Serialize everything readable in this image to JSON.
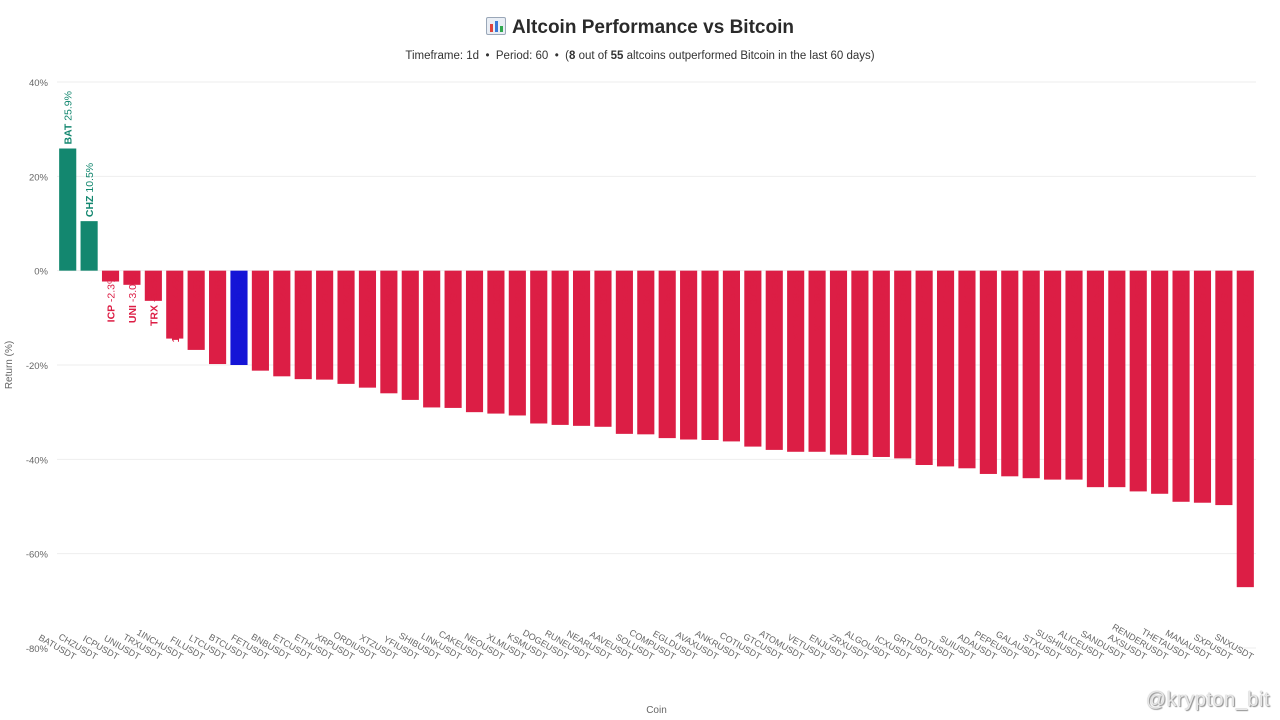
{
  "header": {
    "title": "Altcoin Performance vs Bitcoin",
    "timeframe_text": "Timeframe: 1d",
    "period_text": "Period: 60",
    "outperf_count": "8",
    "outperf_mid": "out of",
    "total_count": "55",
    "outperf_tail": "altcoins outperformed Bitcoin in the last 60 days"
  },
  "watermark": "@krypton_bit",
  "colors": {
    "outperform": "#13876f",
    "underperform": "#dc1e45",
    "bitcoin": "#1515d6",
    "grid": "#eeeeee",
    "axis_text": "#666666"
  },
  "chart_data": {
    "type": "bar",
    "xlabel": "Coin",
    "ylabel": "Return (%)",
    "ylim": [
      -80,
      40
    ],
    "yticks": [
      40,
      20,
      0,
      -20,
      -40,
      -60,
      -80
    ],
    "ytick_labels": [
      "40%",
      "20%",
      "0%",
      "-20%",
      "-40%",
      "-60%",
      "-80%"
    ],
    "grid": true,
    "categories": [
      "BATUSDT",
      "CHZUSDT",
      "ICPUSDT",
      "UNIUSDT",
      "TRXUSDT",
      "1INCHUSDT",
      "FILUSDT",
      "LTCUSDT",
      "BTCUSDT",
      "FETUSDT",
      "BNBUSDT",
      "ETCUSDT",
      "ETHUSDT",
      "XRPUSDT",
      "ORDIUSDT",
      "XTZUSDT",
      "YFIUSDT",
      "SHIBUSDT",
      "LINKUSDT",
      "CAKEUSDT",
      "NEOUSDT",
      "XLMUSDT",
      "KSMUSDT",
      "DOGEUSDT",
      "RUNEUSDT",
      "NEARUSDT",
      "AAVEUSDT",
      "SOLUSDT",
      "COMPUSDT",
      "EGLDUSDT",
      "AVAXUSDT",
      "ANKRUSDT",
      "COTIUSDT",
      "GTCUSDT",
      "ATOMUSDT",
      "VETUSDT",
      "ENJUSDT",
      "ZRXUSDT",
      "ALGOUSDT",
      "ICXUSDT",
      "GRTUSDT",
      "DOTUSDT",
      "SUIUSDT",
      "ADAUSDT",
      "PEPEUSDT",
      "GALAUSDT",
      "STXUSDT",
      "SUSHIUSDT",
      "ALICEUSDT",
      "SANDUSDT",
      "AXSUSDT",
      "RENDERUSDT",
      "THETAUSDT",
      "MANAUSDT",
      "SXPUSDT",
      "SNXUSDT"
    ],
    "bar_labels": [
      "BAT",
      "CHZ",
      "ICP",
      "UNI",
      "TRX",
      "1INCH",
      "FIL",
      "LTC",
      "BTC",
      "FET",
      "BNB",
      "ETC",
      "ETH",
      "XRP",
      "ORDI",
      "XTZ",
      "YFI",
      "SHIB",
      "LINK",
      "CAKE",
      "NEO",
      "XLM",
      "KSM",
      "DOGE",
      "RUNE",
      "NEAR",
      "AAVE",
      "SOL",
      "COMP",
      "EGLD",
      "AVAX",
      "ANKR",
      "COTI",
      "GTC",
      "ATOM",
      "VET",
      "ENJ",
      "ZRX",
      "ALGO",
      "ICX",
      "GRT",
      "DOT",
      "SUI",
      "ADA",
      "PEPE",
      "GALA",
      "STX",
      "SUSHI",
      "ALICE",
      "SAND",
      "AXS",
      "RENDER",
      "THETA",
      "MANA",
      "SXP",
      "SNX"
    ],
    "values": [
      25.9,
      10.5,
      -2.3,
      -3.0,
      -6.4,
      -14.4,
      -16.8,
      -19.8,
      -20.0,
      -21.2,
      -22.4,
      -23.0,
      -23.1,
      -24.0,
      -24.8,
      -26.0,
      -27.4,
      -29.0,
      -29.1,
      -30.0,
      -30.3,
      -30.7,
      -32.4,
      -32.7,
      -32.9,
      -33.1,
      -34.6,
      -34.7,
      -35.5,
      -35.8,
      -35.9,
      -36.2,
      -37.3,
      -38.0,
      -38.4,
      -38.4,
      -39.0,
      -39.1,
      -39.5,
      -39.8,
      -41.2,
      -41.5,
      -41.9,
      -43.1,
      -43.6,
      -44.0,
      -44.3,
      -44.3,
      -45.9,
      -45.9,
      -46.8,
      -47.3,
      -49.0,
      -49.2,
      -49.7,
      -67.1
    ],
    "value_labels": [
      "25.9%",
      "10.5%",
      "-2.3%",
      "-3.0%",
      "-6.4%",
      "-14.4%",
      "-16.8%",
      "-19.8%",
      "-20.0%",
      "-21.2%",
      "-22.4%",
      "-23.0%",
      "-23.1%",
      "-24.0%",
      "-24.8%",
      "-26.0%",
      "-27.4%",
      "-29.0%",
      "-29.1%",
      "-30.0%",
      "-30.3%",
      "-30.7%",
      "-32.4%",
      "-32.7%",
      "-32.9%",
      "-33.1%",
      "-34.6%",
      "-34.7%",
      "-35.5%",
      "-35.8%",
      "-35.9%",
      "-36.2%",
      "-37.3%",
      "-38.0%",
      "-38.4%",
      "-38.4%",
      "-39.0%",
      "-39.1%",
      "-39.5%",
      "-39.8%",
      "-41.2%",
      "-41.5%",
      "-41.9%",
      "-43.1%",
      "-43.6%",
      "-44.0%",
      "-44.3%",
      "-44.3%",
      "-45.9%",
      "-45.9%",
      "-46.8%",
      "-47.3%",
      "-49.0%",
      "-49.2%",
      "-49.7%",
      "-67.1%"
    ]
  }
}
